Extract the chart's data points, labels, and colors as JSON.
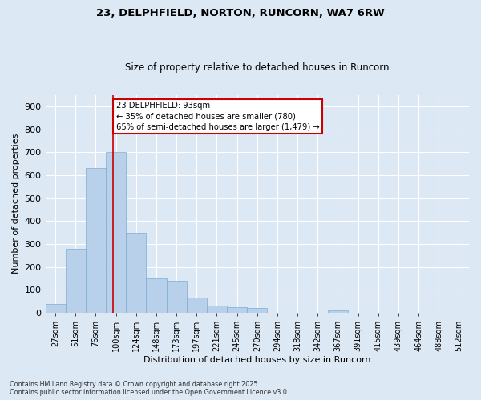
{
  "title1": "23, DELPHFIELD, NORTON, RUNCORN, WA7 6RW",
  "title2": "Size of property relative to detached houses in Runcorn",
  "xlabel": "Distribution of detached houses by size in Runcorn",
  "ylabel": "Number of detached properties",
  "categories": [
    "27sqm",
    "51sqm",
    "76sqm",
    "100sqm",
    "124sqm",
    "148sqm",
    "173sqm",
    "197sqm",
    "221sqm",
    "245sqm",
    "270sqm",
    "294sqm",
    "318sqm",
    "342sqm",
    "367sqm",
    "391sqm",
    "415sqm",
    "439sqm",
    "464sqm",
    "488sqm",
    "512sqm"
  ],
  "values": [
    40,
    280,
    630,
    700,
    350,
    150,
    140,
    65,
    30,
    25,
    20,
    0,
    0,
    0,
    10,
    0,
    0,
    0,
    0,
    0,
    0
  ],
  "bar_color": "#b8d0ea",
  "bar_edge_color": "#7aaed0",
  "background_color": "#dde8f5",
  "grid_color": "#ffffff",
  "annotation_line_label": "23 DELPHFIELD: 93sqm",
  "annotation_text1": "← 35% of detached houses are smaller (780)",
  "annotation_text2": "65% of semi-detached houses are larger (1,479) →",
  "annotation_box_color": "#ffffff",
  "annotation_box_edge": "#cc0000",
  "line_color": "#cc0000",
  "ylim": [
    0,
    950
  ],
  "yticks": [
    0,
    100,
    200,
    300,
    400,
    500,
    600,
    700,
    800,
    900
  ],
  "footnote1": "Contains HM Land Registry data © Crown copyright and database right 2025.",
  "footnote2": "Contains public sector information licensed under the Open Government Licence v3.0.",
  "line_x_index": 2.85
}
